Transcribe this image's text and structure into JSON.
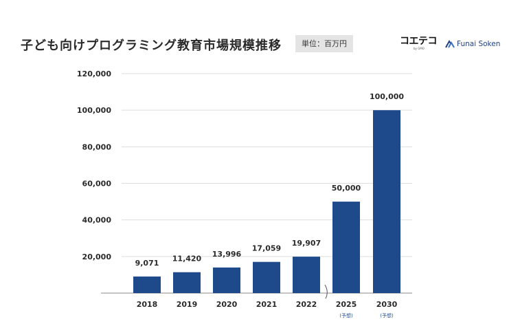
{
  "header": {
    "title": "子ども向けプログラミング教育市場規模推移",
    "unit_label": "単位：百万円"
  },
  "logos": {
    "coeteco": {
      "text": "コエテコ",
      "sub": "by GMO"
    },
    "funai": {
      "text": "Funai Soken"
    }
  },
  "colors": {
    "bar": "#1e4a8c",
    "grid": "#dddddd",
    "axis": "#888888"
  },
  "chart_data": {
    "type": "bar",
    "title": "子ども向けプログラミング教育市場規模推移",
    "ylabel": "単位：百万円",
    "xlabel": "",
    "categories": [
      "2018",
      "2019",
      "2020",
      "2021",
      "2022",
      "2025",
      "2030"
    ],
    "category_notes": [
      "",
      "",
      "",
      "",
      "",
      "(予想)",
      "(予想)"
    ],
    "values": [
      9071,
      11420,
      13996,
      17059,
      19907,
      50000,
      100000
    ],
    "value_labels": [
      "9,071",
      "11,420",
      "13,996",
      "17,059",
      "19,907",
      "50,000",
      "100,000"
    ],
    "ylim": [
      0,
      120000
    ],
    "yticks": [
      20000,
      40000,
      60000,
      80000,
      100000,
      120000
    ],
    "ytick_labels": [
      "20,000",
      "40,000",
      "60,000",
      "80,000",
      "100,000",
      "120,000"
    ],
    "axis_break_after": "2022",
    "grid": true,
    "legend": "none"
  }
}
